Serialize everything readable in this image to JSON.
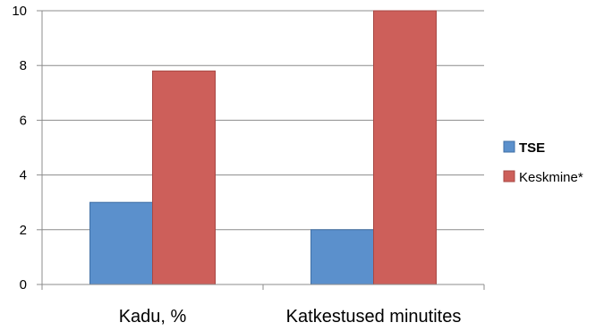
{
  "chart_data": {
    "type": "bar",
    "categories": [
      "Kadu, %",
      "Katkestused minutites"
    ],
    "series": [
      {
        "name": "TSE",
        "values": [
          3,
          2
        ],
        "color": "#5b90cc",
        "stroke": "#3f6fa6"
      },
      {
        "name": "Keskmine*",
        "values": [
          7.8,
          10
        ],
        "color": "#cd5f5a",
        "stroke": "#a84844"
      }
    ],
    "ylim": [
      0,
      10
    ],
    "yticks": [
      "0",
      "2",
      "4",
      "6",
      "8",
      "10"
    ],
    "grid": true,
    "legend": "right",
    "title": "",
    "xlabel": "",
    "ylabel": ""
  }
}
